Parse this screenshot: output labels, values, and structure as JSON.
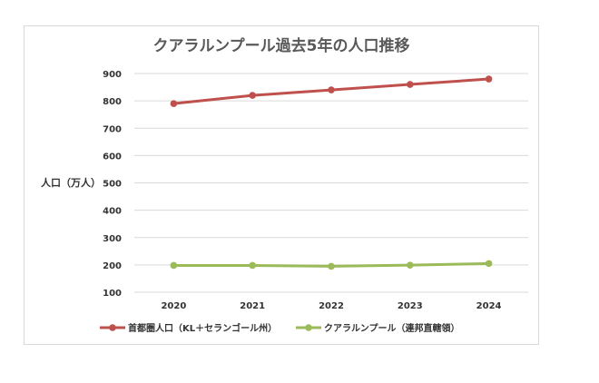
{
  "chart_data": {
    "type": "line",
    "title": "クアラルンプール過去5年の人口推移",
    "ylabel": "人口（万人）",
    "xlabel": "",
    "categories": [
      "2020",
      "2021",
      "2022",
      "2023",
      "2024"
    ],
    "ylim": [
      100,
      900
    ],
    "yticks": [
      "100",
      "200",
      "300",
      "400",
      "500",
      "600",
      "700",
      "800",
      "900"
    ],
    "grid": true,
    "legend_position": "bottom",
    "series": [
      {
        "name": "首都圏人口（KL＋セランゴール州）",
        "color": "#c0504d",
        "values": [
          790,
          820,
          840,
          860,
          880
        ]
      },
      {
        "name": "クアラルンプール（連邦直轄領）",
        "color": "#9bbb59",
        "values": [
          198,
          198,
          195,
          199,
          205
        ]
      }
    ]
  }
}
